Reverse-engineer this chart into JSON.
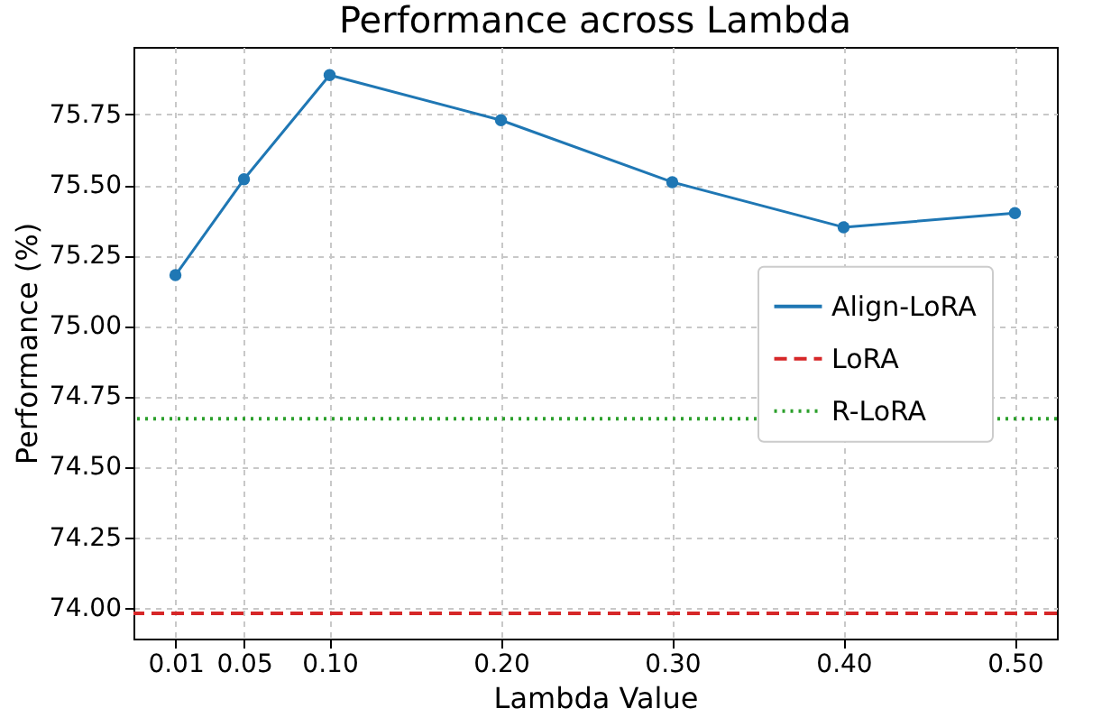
{
  "chart_data": {
    "type": "line",
    "title": "Performance across Lambda",
    "xlabel": "Lambda Value",
    "ylabel": "Performance (%)",
    "x": [
      0.01,
      0.05,
      0.1,
      0.2,
      0.3,
      0.4,
      0.5
    ],
    "series": [
      {
        "name": "Align-LoRA",
        "color": "#1f77b4",
        "values": [
          75.18,
          75.52,
          75.89,
          75.73,
          75.51,
          75.35,
          75.4
        ]
      }
    ],
    "ref_lines": [
      {
        "axis": "y",
        "value": 73.98,
        "label": "LoRA",
        "color": "#d62728",
        "line_style": "dashed"
      },
      {
        "axis": "y",
        "value": 74.67,
        "label": "R-LoRA",
        "color": "#2ca02c",
        "line_style": "dotted"
      }
    ],
    "xlim": [
      -0.0145,
      0.5245
    ],
    "xticks": [
      {
        "value": 0.01,
        "label": "0.01"
      },
      {
        "value": 0.05,
        "label": "0.05"
      },
      {
        "value": 0.1,
        "label": "0.10"
      },
      {
        "value": 0.2,
        "label": "0.20"
      },
      {
        "value": 0.3,
        "label": "0.30"
      },
      {
        "value": 0.4,
        "label": "0.40"
      },
      {
        "value": 0.5,
        "label": "0.50"
      }
    ],
    "ylim": [
      73.89,
      75.99
    ],
    "yticks": [
      {
        "value": 74,
        "label": "74.00"
      },
      {
        "value": 74.25,
        "label": "74.25"
      },
      {
        "value": 74.5,
        "label": "74.50"
      },
      {
        "value": 74.75,
        "label": "74.75"
      },
      {
        "value": 75,
        "label": "75.00"
      },
      {
        "value": 75.25,
        "label": "75.25"
      },
      {
        "value": 75.5,
        "label": "75.50"
      },
      {
        "value": 75.75,
        "label": "75.75"
      }
    ],
    "grid": true,
    "legend": "right",
    "marker": "circle",
    "line_style": "solid"
  }
}
